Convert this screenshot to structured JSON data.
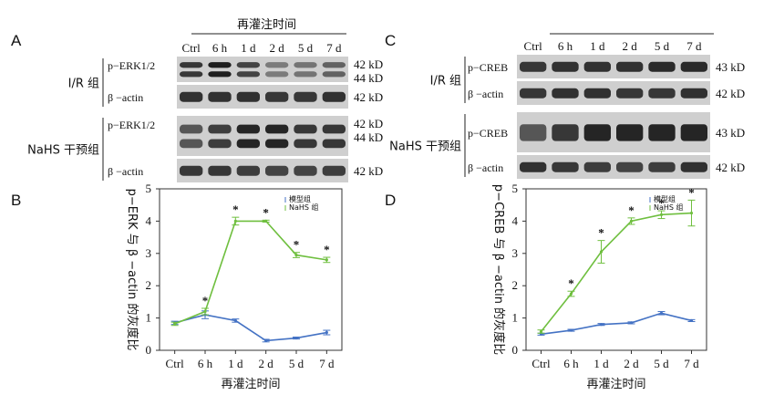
{
  "panels": {
    "A": "A",
    "B": "B",
    "C": "C",
    "D": "D"
  },
  "blots": {
    "A": {
      "header": "再灌注时间",
      "lanes": [
        "Ctrl",
        "6 h",
        "1 d",
        "2 d",
        "5 d",
        "7 d"
      ],
      "groups": [
        {
          "name": "I/R 组",
          "rows": [
            {
              "label": "p−ERK1/2",
              "kd": [
                "42 kD",
                "44 kD"
              ],
              "intensity": [
                0.8,
                1.0,
                0.7,
                0.25,
                0.3,
                0.45
              ],
              "double": true
            },
            {
              "label": "β −actin",
              "kd": [
                "42 kD"
              ],
              "intensity": [
                0.85,
                0.85,
                0.85,
                0.8,
                0.8,
                0.85
              ],
              "double": false
            }
          ]
        },
        {
          "name": "NaHS 干预组",
          "rows": [
            {
              "label": "p−ERK1/2",
              "kd": [
                "42 kD",
                "44 kD"
              ],
              "intensity": [
                0.55,
                0.75,
                0.95,
                0.95,
                0.8,
                0.8
              ],
              "double": true
            },
            {
              "label": "β −actin",
              "kd": [
                "42 kD"
              ],
              "intensity": [
                0.8,
                0.8,
                0.75,
                0.7,
                0.7,
                0.75
              ],
              "double": false
            }
          ]
        }
      ]
    },
    "C": {
      "header_lanes": [
        "Ctrl",
        "6 h",
        "1 d",
        "2 d",
        "5 d",
        "7 d"
      ],
      "groups": [
        {
          "name": "I/R 组",
          "rows": [
            {
              "label": "p−CREB",
              "kd": [
                "43 kD"
              ],
              "intensity": [
                0.8,
                0.85,
                0.85,
                0.85,
                0.9,
                0.9
              ]
            },
            {
              "label": "β −actin",
              "kd": [
                "42 kD"
              ],
              "intensity": [
                0.8,
                0.85,
                0.85,
                0.8,
                0.8,
                0.85
              ]
            }
          ]
        },
        {
          "name": "NaHS 干预组",
          "rows": [
            {
              "label": "p−CREB",
              "kd": [
                "43 kD"
              ],
              "intensity": [
                0.55,
                0.8,
                0.95,
                0.95,
                0.95,
                0.95
              ]
            },
            {
              "label": "β −actin",
              "kd": [
                "42 kD"
              ],
              "intensity": [
                0.85,
                0.8,
                0.75,
                0.7,
                0.75,
                0.85
              ]
            }
          ]
        }
      ]
    }
  },
  "chart_data": [
    {
      "panel": "B",
      "type": "line",
      "categories": [
        "Ctrl",
        "6 h",
        "1 d",
        "2 d",
        "5 d",
        "7 d"
      ],
      "xlabel": "再灌注时间",
      "ylabel": "p−ERK 与 β −actin 的灰度比",
      "ylim": [
        0,
        5
      ],
      "yticks": [
        0,
        1,
        2,
        3,
        4,
        5
      ],
      "legend": "top-right",
      "series": [
        {
          "name": "模型组",
          "color": "#4472c4",
          "values": [
            0.85,
            1.1,
            0.92,
            0.3,
            0.38,
            0.55
          ],
          "errors": [
            0.05,
            0.12,
            0.05,
            0.04,
            0.03,
            0.07
          ]
        },
        {
          "name": "NaHS 组",
          "color": "#6fbf3f",
          "values": [
            0.82,
            1.2,
            4.0,
            4.0,
            2.95,
            2.8
          ],
          "errors": [
            0.05,
            0.1,
            0.12,
            0.03,
            0.08,
            0.08
          ]
        }
      ],
      "significance": [
        "",
        "*",
        "*",
        "*",
        "*",
        "*"
      ]
    },
    {
      "panel": "D",
      "type": "line",
      "categories": [
        "Ctrl",
        "6 h",
        "1 d",
        "2 d",
        "5 d",
        "7 d"
      ],
      "xlabel": "再灌注时间",
      "ylabel": "p−CREB 与 β −actin 的灰度比",
      "ylim": [
        0,
        5
      ],
      "yticks": [
        0,
        1,
        2,
        3,
        4,
        5
      ],
      "legend": "top-right",
      "series": [
        {
          "name": "模型组",
          "color": "#4472c4",
          "values": [
            0.5,
            0.62,
            0.8,
            0.85,
            1.15,
            0.92
          ],
          "errors": [
            0.03,
            0.03,
            0.03,
            0.03,
            0.05,
            0.03
          ]
        },
        {
          "name": "NaHS 组",
          "color": "#6fbf3f",
          "values": [
            0.58,
            1.75,
            3.05,
            4.0,
            4.2,
            4.25
          ],
          "errors": [
            0.05,
            0.08,
            0.35,
            0.1,
            0.12,
            0.4
          ]
        }
      ],
      "significance": [
        "",
        "*",
        "*",
        "*",
        "*",
        "*"
      ]
    }
  ]
}
